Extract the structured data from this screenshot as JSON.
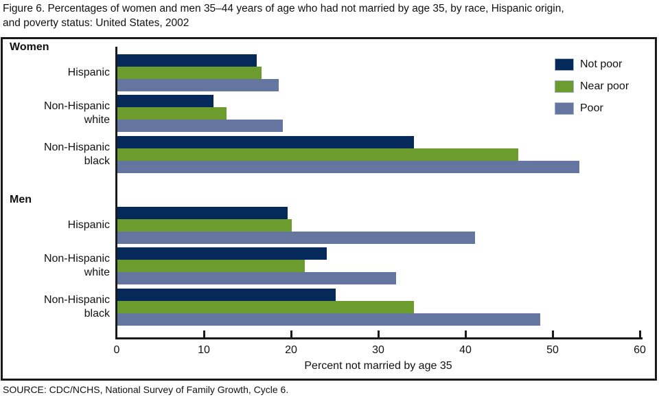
{
  "page": {
    "title_lines": [
      "Figure 6. Percentages of women and men 35–44 years of age who had not married by age 35, by race, Hispanic origin,",
      "and poverty status: United States, 2002"
    ],
    "source": "SOURCE: CDC/NCHS, National Survey of Family Growth, Cycle 6."
  },
  "chart_data": {
    "type": "bar",
    "orientation": "horizontal",
    "title": "Figure 6. Percentages of women and men 35–44 years of age who had not married by age 35, by race, Hispanic origin, and poverty status: United States, 2002",
    "xlabel": "Percent not married by age 35",
    "xlim": [
      0,
      60
    ],
    "xticks": [
      0,
      10,
      20,
      30,
      40,
      50,
      60
    ],
    "grid": false,
    "legend_position": "top-right",
    "series_names": [
      "Not poor",
      "Near poor",
      "Poor"
    ],
    "series_colors": [
      "#052a5a",
      "#6d9c2e",
      "#6476a0"
    ],
    "sections": [
      {
        "label": "Women",
        "rows": [
          {
            "label_lines": [
              "Hispanic"
            ],
            "values": [
              16,
              16.5,
              18.5
            ]
          },
          {
            "label_lines": [
              "Non-Hispanic",
              "white"
            ],
            "values": [
              11,
              12.5,
              19
            ]
          },
          {
            "label_lines": [
              "Non-Hispanic",
              "black"
            ],
            "values": [
              34,
              46,
              53
            ]
          }
        ]
      },
      {
        "label": "Men",
        "rows": [
          {
            "label_lines": [
              "Hispanic"
            ],
            "values": [
              19.5,
              20,
              41
            ]
          },
          {
            "label_lines": [
              "Non-Hispanic",
              "white"
            ],
            "values": [
              24,
              21.5,
              32
            ]
          },
          {
            "label_lines": [
              "Non-Hispanic",
              "black"
            ],
            "values": [
              25,
              34,
              48.5
            ]
          }
        ]
      }
    ]
  }
}
